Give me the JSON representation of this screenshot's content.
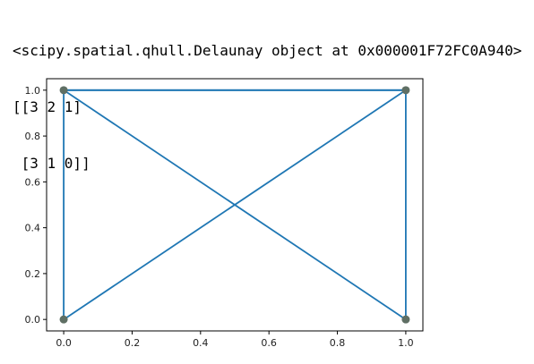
{
  "output_lines": [
    "<scipy.spatial.qhull.Delaunay object at 0x000001F72FC0A940>",
    "[[3 2 1]",
    " [3 1 0]]"
  ],
  "chart_data": {
    "type": "line",
    "title": "",
    "xlabel": "",
    "ylabel": "",
    "xlim": [
      -0.05,
      1.05
    ],
    "ylim": [
      -0.05,
      1.05
    ],
    "grid": false,
    "x_ticks": [
      "0.0",
      "0.2",
      "0.4",
      "0.6",
      "0.8",
      "1.0"
    ],
    "y_ticks": [
      "0.0",
      "0.2",
      "0.4",
      "0.6",
      "0.8",
      "1.0"
    ],
    "points": [
      {
        "x": 0.0,
        "y": 0.0
      },
      {
        "x": 0.0,
        "y": 1.0
      },
      {
        "x": 1.0,
        "y": 0.0
      },
      {
        "x": 1.0,
        "y": 1.0
      }
    ],
    "triangles": [
      [
        3,
        2,
        1
      ],
      [
        3,
        1,
        0
      ]
    ],
    "colors": {
      "line": "#1f77b4",
      "points": "#5f6f64",
      "axes": "#000000"
    }
  }
}
